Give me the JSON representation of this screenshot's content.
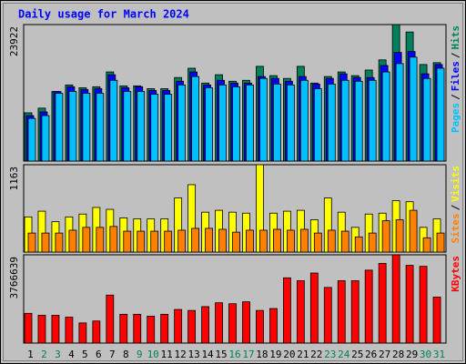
{
  "chart_data": [
    {
      "type": "bar",
      "title": "Daily usage for March 2024",
      "legend_separator": "/",
      "ylim": [
        0,
        23922
      ],
      "yticks": [
        23922
      ],
      "series": [
        {
          "name": "Hits",
          "color": "#00805c",
          "values": [
            8460,
            9275,
            12200,
            13340,
            12850,
            13020,
            15620,
            13180,
            13180,
            12690,
            12690,
            14640,
            16270,
            13670,
            15130,
            13990,
            14150,
            16600,
            14970,
            14480,
            16600,
            13670,
            14810,
            15620,
            14970,
            15950,
            17730,
            23922,
            22620,
            16920,
            17250
          ]
        },
        {
          "name": "Files",
          "color": "#0000ff",
          "values": [
            7970,
            8620,
            12200,
            13020,
            12530,
            12690,
            15130,
            12850,
            13020,
            12370,
            12370,
            13990,
            15620,
            13340,
            14150,
            13670,
            13670,
            14810,
            14480,
            13990,
            14810,
            13500,
            14480,
            15290,
            14640,
            14640,
            16760,
            19040,
            19200,
            15290,
            16920
          ]
        },
        {
          "name": "Pages",
          "color": "#00c0ff",
          "values": [
            7480,
            7970,
            11880,
            12200,
            11880,
            11880,
            14150,
            12200,
            12200,
            11710,
            11710,
            13340,
            14810,
            12850,
            13340,
            13020,
            13340,
            14480,
            13500,
            13340,
            14150,
            12690,
            13500,
            14150,
            13990,
            14150,
            15620,
            17080,
            18220,
            14480,
            16270
          ]
        }
      ]
    },
    {
      "type": "bar",
      "legend_separator": "/",
      "ylim": [
        0,
        1163
      ],
      "yticks": [
        1163
      ],
      "series": [
        {
          "name": "Visits",
          "color": "#ffff00",
          "values": [
            468,
            544,
            404,
            468,
            506,
            594,
            569,
            455,
            442,
            442,
            442,
            720,
            897,
            531,
            556,
            531,
            518,
            1163,
            518,
            544,
            556,
            430,
            720,
            531,
            329,
            506,
            518,
            683,
            670,
            329,
            442
          ]
        },
        {
          "name": "Sites",
          "color": "#ff8000",
          "values": [
            253,
            253,
            253,
            291,
            329,
            329,
            341,
            278,
            278,
            278,
            278,
            291,
            316,
            316,
            303,
            265,
            291,
            291,
            303,
            291,
            303,
            253,
            291,
            278,
            202,
            253,
            417,
            430,
            556,
            190,
            253
          ]
        }
      ]
    },
    {
      "type": "bar",
      "ylim": [
        0,
        3766639
      ],
      "yticks": [
        3766639
      ],
      "categories": [
        "1",
        "2",
        "3",
        "4",
        "5",
        "6",
        "7",
        "8",
        "9",
        "10",
        "11",
        "12",
        "13",
        "14",
        "15",
        "16",
        "17",
        "18",
        "19",
        "20",
        "21",
        "22",
        "23",
        "24",
        "25",
        "26",
        "27",
        "28",
        "29",
        "30",
        "31"
      ],
      "category_colors": [
        "#000000",
        "#00805c",
        "#00805c",
        "#000000",
        "#000000",
        "#000000",
        "#000000",
        "#000000",
        "#00805c",
        "#00805c",
        "#000000",
        "#000000",
        "#000000",
        "#000000",
        "#000000",
        "#00805c",
        "#00805c",
        "#000000",
        "#000000",
        "#000000",
        "#000000",
        "#000000",
        "#00805c",
        "#00805c",
        "#000000",
        "#000000",
        "#000000",
        "#000000",
        "#000000",
        "#00805c",
        "#00805c"
      ],
      "series": [
        {
          "name": "KBytes",
          "color": "#ff0000",
          "values": [
            1269200,
            1187318,
            1187318,
            1105434,
            859782,
            941666,
            2047100,
            1228260,
            1228260,
            1146376,
            1228260,
            1432970,
            1392028,
            1555796,
            1719564,
            1678622,
            1760506,
            1392028,
            1473912,
            2784056,
            2661230,
            2988766,
            2374636,
            2661230,
            2661230,
            3111592,
            3398186,
            3766639,
            3316302,
            3275360,
            1965216
          ]
        }
      ]
    }
  ]
}
